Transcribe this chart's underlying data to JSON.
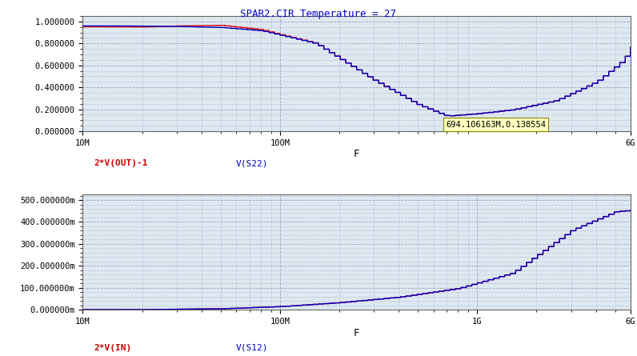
{
  "title": "SPAR2.CIR Temperature = 27",
  "title_color": "#0000cc",
  "background_color": "#ffffff",
  "grid_color": "#aaaaaa",
  "plot_bg_color": "#dde8f0",
  "top_plot": {
    "ylabel_ticks": [
      "0.000000",
      "0.200000",
      "0.400000",
      "0.600000",
      "0.800000",
      "1.000000"
    ],
    "ylim": [
      0.0,
      1.05
    ],
    "xlabel": "F",
    "legend": [
      {
        "label": "2*V(OUT)-1",
        "color": "#cc0000"
      },
      {
        "label": "V(S22)",
        "color": "#0000cc"
      }
    ],
    "annotation": "694.106163M,0.138554"
  },
  "bottom_plot": {
    "ylabel_ticks": [
      "0.000000m",
      "100.000000m",
      "200.000000m",
      "300.000000m",
      "400.000000m",
      "500.000000m"
    ],
    "ylim": [
      0.0,
      0.525
    ],
    "xlabel": "F",
    "legend": [
      {
        "label": "2*V(IN)",
        "color": "#cc0000"
      },
      {
        "label": "V(S12)",
        "color": "#0000cc"
      }
    ]
  },
  "xmin": 10000000.0,
  "xmax": 6000000000.0
}
